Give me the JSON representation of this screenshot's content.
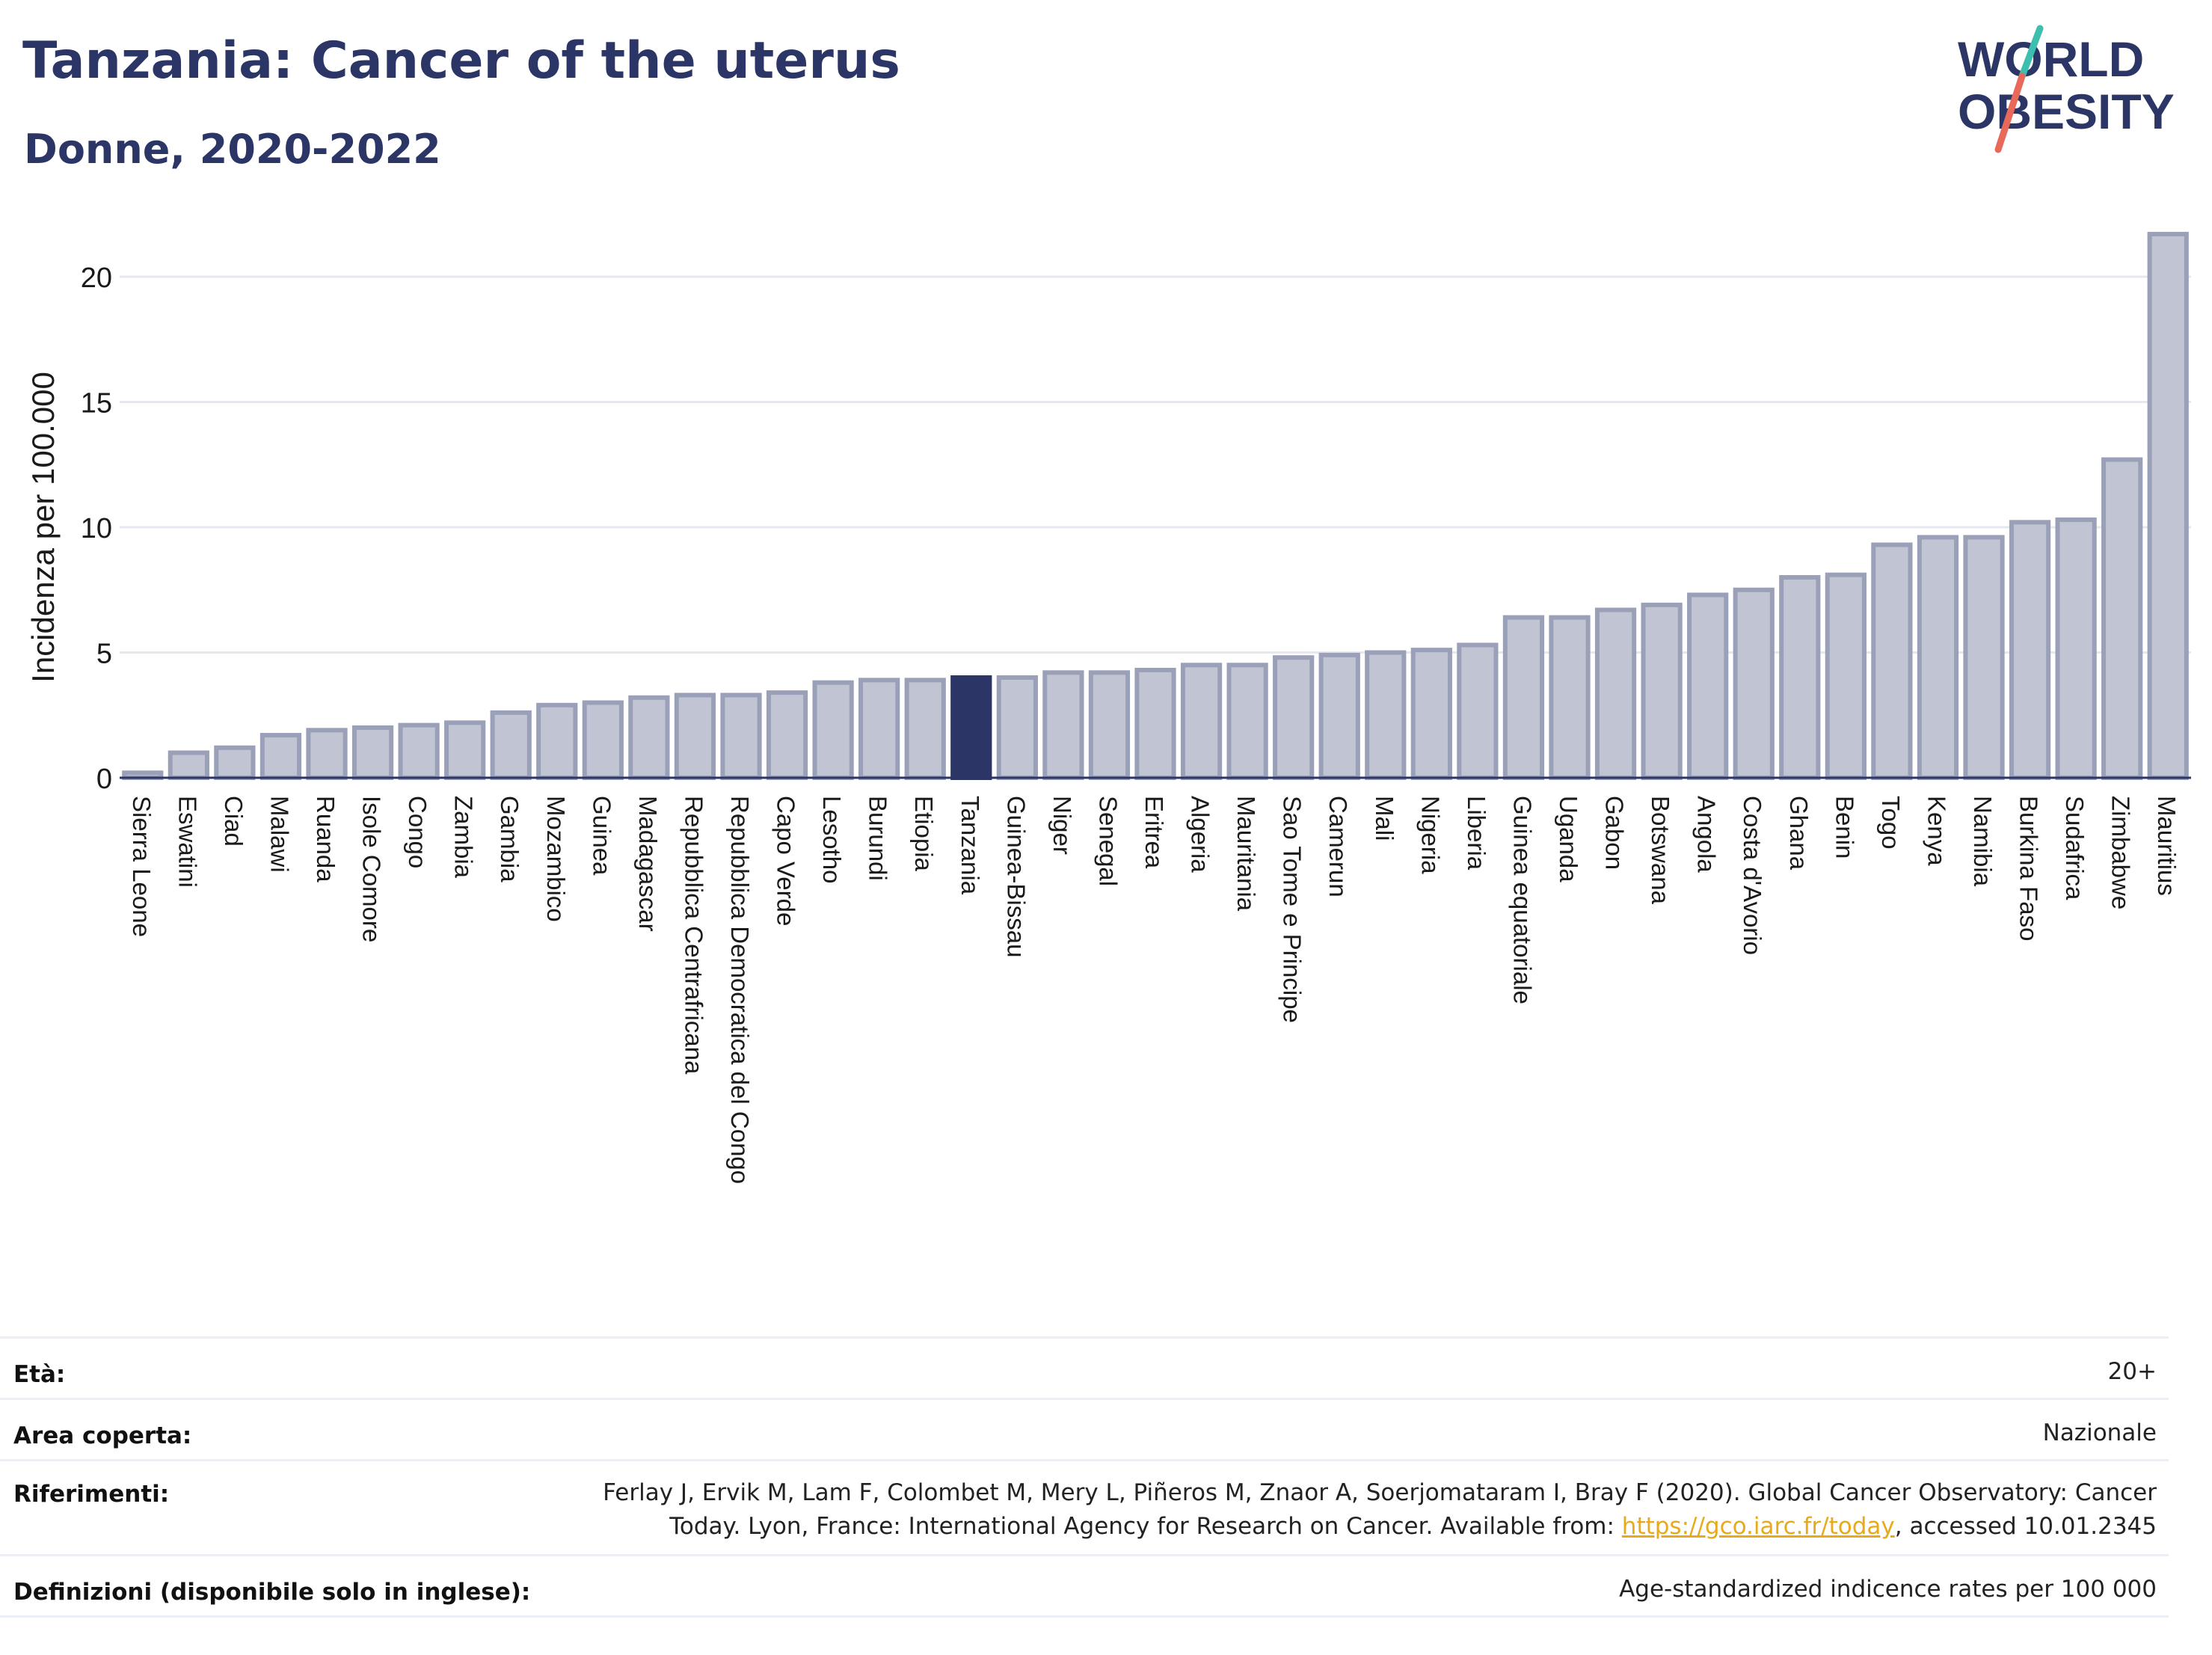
{
  "header": {
    "title": "Tanzania: Cancer of the uterus",
    "subtitle": "Donne, 2020-2022"
  },
  "logo": {
    "line1": "WORLD",
    "line2": "OBESITY"
  },
  "colors": {
    "highlight": "#2b3566",
    "bar_fill": "#c0c4d3",
    "bar_stroke": "#9aa0b8",
    "title": "#2b3566",
    "link": "#e8a91a",
    "logo_teal": "#3dbfb0",
    "logo_red": "#e8685a"
  },
  "chart_data": {
    "type": "bar",
    "ylabel": "Incidenza per 100.000",
    "ylim": [
      0,
      22
    ],
    "yticks": [
      0,
      5,
      10,
      15,
      20
    ],
    "grid": true,
    "highlight": "Tanzania",
    "categories": [
      "Sierra Leone",
      "Eswatini",
      "Ciad",
      "Malawi",
      "Ruanda",
      "Isole Comore",
      "Congo",
      "Zambia",
      "Gambia",
      "Mozambico",
      "Guinea",
      "Madagascar",
      "Repubblica Centrafricana",
      "Repubblica Democratica del Congo",
      "Capo Verde",
      "Lesotho",
      "Burundi",
      "Etiopia",
      "Tanzania",
      "Guinea-Bissau",
      "Niger",
      "Senegal",
      "Eritrea",
      "Algeria",
      "Mauritania",
      "Sao Tome e Principe",
      "Camerun",
      "Mali",
      "Nigeria",
      "Liberia",
      "Guinea equatoriale",
      "Uganda",
      "Gabon",
      "Botswana",
      "Angola",
      "Costa d'Avorio",
      "Ghana",
      "Benin",
      "Togo",
      "Kenya",
      "Namibia",
      "Burkina Faso",
      "Sudafrica",
      "Zimbabwe",
      "Mauritius"
    ],
    "values": [
      0.2,
      1.0,
      1.2,
      1.7,
      1.9,
      2.0,
      2.1,
      2.2,
      2.6,
      2.9,
      3.0,
      3.2,
      3.3,
      3.3,
      3.4,
      3.8,
      3.9,
      3.9,
      4.0,
      4.0,
      4.2,
      4.2,
      4.3,
      4.5,
      4.5,
      4.8,
      4.9,
      5.0,
      5.1,
      5.3,
      6.4,
      6.4,
      6.7,
      6.9,
      7.3,
      7.5,
      8.0,
      8.1,
      9.3,
      9.6,
      9.6,
      10.2,
      10.3,
      12.7,
      21.7
    ]
  },
  "meta": {
    "age_label": "Età:",
    "age_value": "20+",
    "area_label": "Area coperta:",
    "area_value": "Nazionale",
    "ref_label": "Riferimenti:",
    "ref_line1": "Ferlay J, Ervik M, Lam F, Colombet M, Mery L, Piñeros M, Znaor A, Soerjomataram I, Bray F (2020). Global Cancer Observatory: Cancer",
    "ref_line2_pre": "Today. Lyon, France: International Agency for Research on Cancer. Available from: ",
    "ref_link": "https://gco.iarc.fr/today",
    "ref_line2_post": ", accessed 10.01.2345",
    "def_label": "Definizioni (disponibile solo in inglese):",
    "def_value": "Age-standardized indicence rates per 100 000"
  }
}
